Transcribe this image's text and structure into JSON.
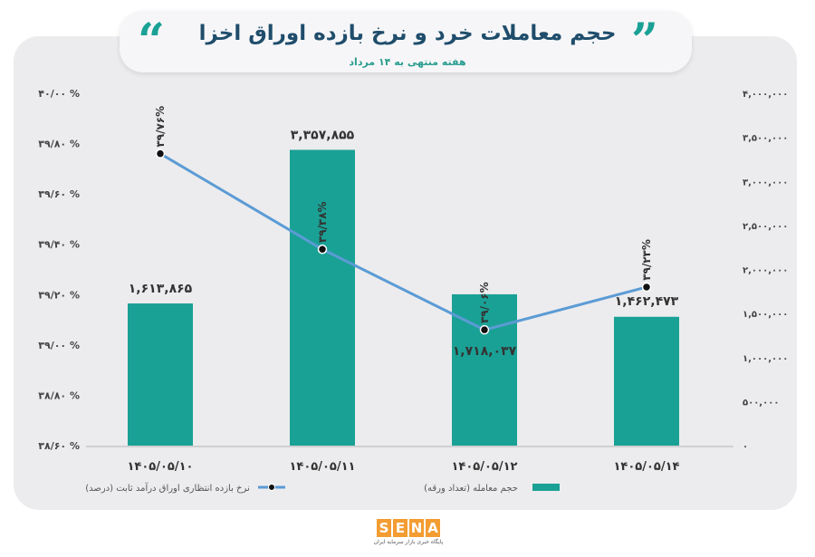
{
  "header": {
    "title": "حجم معاملات خرد و نرخ بازده اوراق اخزا",
    "subtitle": "هفته منتهی به ۱۴ مرداد"
  },
  "chart_data": {
    "type": "bar",
    "categories": [
      "۱۴۰۵/۰۵/۱۰",
      "۱۴۰۵/۰۵/۱۱",
      "۱۴۰۵/۰۵/۱۲",
      "۱۴۰۵/۰۵/۱۴"
    ],
    "series": [
      {
        "name": "حجم معامله (تعداد ورقه)",
        "type": "bar",
        "axis": "right",
        "color": "#1aa195",
        "values": [
          1613865,
          3357855,
          1718037,
          1462473
        ],
        "labels": [
          "۱,۶۱۳,۸۶۵",
          "۳,۳۵۷,۸۵۵",
          "۱,۷۱۸,۰۳۷",
          "۱,۴۶۲,۴۷۳"
        ]
      },
      {
        "name": "نرخ بازده انتظاری اوراق درآمد ثابت (درصد)",
        "type": "line",
        "axis": "left",
        "color": "#5b9bd5",
        "values": [
          39.76,
          39.38,
          39.06,
          39.23
        ],
        "labels": [
          "۳۹/۷۶%",
          "۳۹/۳۸%",
          "۳۹/۰۶%",
          "۳۹/۲۳%"
        ]
      }
    ],
    "y_left": {
      "range": [
        38.6,
        40.0
      ],
      "ticks": [
        "۴۰/۰۰ %",
        "۳۹/۸۰ %",
        "۳۹/۶۰ %",
        "۳۹/۴۰ %",
        "۳۹/۲۰ %",
        "۳۹/۰۰ %",
        "۳۸/۸۰ %",
        "۳۸/۶۰ %"
      ]
    },
    "y_right": {
      "range": [
        0,
        4000000
      ],
      "ticks": [
        "۴,۰۰۰,۰۰۰",
        "۳,۵۰۰,۰۰۰",
        "۳,۰۰۰,۰۰۰",
        "۲,۵۰۰,۰۰۰",
        "۲,۰۰۰,۰۰۰",
        "۱,۵۰۰,۰۰۰",
        "۱,۰۰۰,۰۰۰",
        "۵۰۰,۰۰۰",
        "۰"
      ]
    },
    "grid": false,
    "legend_position": "bottom"
  },
  "logo": {
    "letters": [
      "S",
      "E",
      "N",
      "A"
    ],
    "tagline": "پایگاه خبری بازار سرمایه ایران"
  },
  "colors": {
    "accent": "#1aa195",
    "title": "#1f4d6b",
    "line": "#5b9bd5",
    "panel": "#ececee",
    "logo": "#f39c32"
  }
}
